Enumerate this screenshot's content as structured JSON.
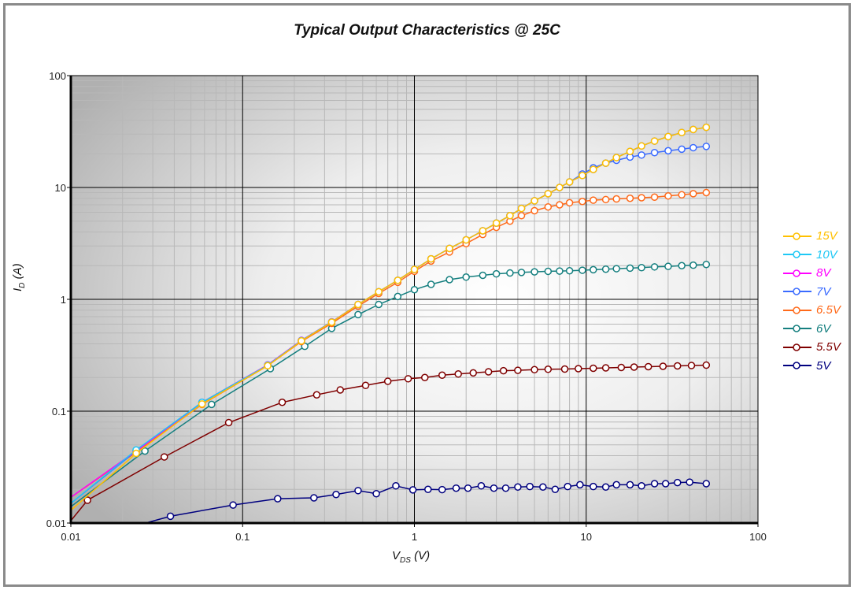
{
  "chart_data": {
    "type": "line",
    "title": "Typical Output Characteristics @ 25C",
    "xlabel": {
      "main": "V",
      "sub": "DS",
      "unit": " (V)"
    },
    "ylabel": {
      "main": "I",
      "sub": "D",
      "unit": " (A)"
    },
    "xscale": "log",
    "yscale": "log",
    "xlim": [
      0.01,
      100
    ],
    "ylim": [
      0.01,
      100
    ],
    "xticks": [
      {
        "v": 0.01,
        "label": "0.01"
      },
      {
        "v": 0.1,
        "label": "0.1"
      },
      {
        "v": 1,
        "label": "1"
      },
      {
        "v": 10,
        "label": "10"
      },
      {
        "v": 100,
        "label": "100"
      }
    ],
    "yticks": [
      {
        "v": 0.01,
        "label": "0.01"
      },
      {
        "v": 0.1,
        "label": "0.1"
      },
      {
        "v": 1,
        "label": "1"
      },
      {
        "v": 10,
        "label": "10"
      },
      {
        "v": 100,
        "label": "100"
      }
    ],
    "grid": true,
    "legend_position": "right",
    "series": [
      {
        "name": "15V",
        "color": "#FFC000",
        "x": [
          0.01,
          0.024,
          0.058,
          0.14,
          0.22,
          0.33,
          0.47,
          0.62,
          0.8,
          1.0,
          1.25,
          1.6,
          2.0,
          2.5,
          3.0,
          3.6,
          4.2,
          5.0,
          6.0,
          7.0,
          8.0,
          9.5,
          11,
          13,
          15,
          18,
          21,
          25,
          30,
          36,
          42,
          50
        ],
        "y": [
          0.013,
          0.042,
          0.116,
          0.255,
          0.425,
          0.625,
          0.9,
          1.17,
          1.48,
          1.85,
          2.3,
          2.85,
          3.4,
          4.1,
          4.8,
          5.6,
          6.5,
          7.6,
          8.8,
          10,
          11.2,
          12.8,
          14.5,
          16.5,
          18.5,
          21,
          23.5,
          26,
          28.5,
          31,
          33,
          34.5
        ]
      },
      {
        "name": "10V",
        "color": "#1EC8F5",
        "x": [
          0.01,
          0.024,
          0.058,
          0.14,
          0.22,
          0.33,
          0.47,
          0.62,
          0.8,
          1.0,
          1.25,
          1.6,
          2.0,
          2.5,
          3.0,
          3.6,
          4.2,
          5.0,
          6.0,
          7.0,
          8.0,
          9.5,
          11,
          13,
          15,
          18,
          21,
          25,
          30,
          36,
          42,
          50
        ],
        "y": [
          0.015,
          0.045,
          0.12,
          0.258,
          0.428,
          0.628,
          0.9,
          1.17,
          1.48,
          1.85,
          2.3,
          2.85,
          3.4,
          4.1,
          4.8,
          5.6,
          6.5,
          7.6,
          8.8,
          10,
          11.2,
          12.8,
          14.5,
          16.5,
          18.5,
          21,
          23.5,
          26,
          28.5,
          31,
          33,
          34.5
        ]
      },
      {
        "name": "8V",
        "color": "#FF00FF",
        "x": [
          0.01,
          0.024,
          0.058,
          0.14,
          0.22,
          0.33,
          0.47,
          0.62,
          0.8,
          1.0,
          1.25,
          1.6,
          2.0,
          2.5,
          3.0,
          3.6,
          4.2,
          5.0,
          6.0,
          7.0,
          8.0,
          9.5,
          11,
          13,
          15,
          18,
          21,
          25,
          30,
          36,
          42,
          50
        ],
        "y": [
          0.017,
          0.044,
          0.12,
          0.26,
          0.43,
          0.63,
          0.9,
          1.17,
          1.48,
          1.85,
          2.3,
          2.85,
          3.4,
          4.1,
          4.8,
          5.6,
          6.5,
          7.6,
          8.8,
          10,
          11.2,
          12.8,
          14.5,
          16.5,
          18.5,
          21,
          23.5,
          26,
          28.5,
          31,
          33,
          34.5
        ]
      },
      {
        "name": "7V",
        "color": "#3A6BFF",
        "x": [
          0.01,
          0.024,
          0.058,
          0.14,
          0.22,
          0.33,
          0.47,
          0.62,
          0.8,
          1.0,
          1.25,
          1.6,
          2.0,
          2.5,
          3.0,
          3.6,
          4.2,
          5.0,
          6.0,
          7.0,
          8.0,
          9.5,
          11,
          13,
          15,
          18,
          21,
          25,
          30,
          36,
          42,
          50
        ],
        "y": [
          0.015,
          0.044,
          0.119,
          0.258,
          0.428,
          0.628,
          0.9,
          1.17,
          1.48,
          1.85,
          2.3,
          2.85,
          3.4,
          4.1,
          4.8,
          5.6,
          6.5,
          7.6,
          8.8,
          10,
          11.2,
          13.2,
          15,
          16.5,
          17.5,
          18.7,
          19.5,
          20.5,
          21.3,
          22,
          22.7,
          23.3
        ]
      },
      {
        "name": "6.5V",
        "color": "#FF6A1A",
        "x": [
          0.01,
          0.024,
          0.058,
          0.14,
          0.22,
          0.33,
          0.47,
          0.62,
          0.8,
          1.0,
          1.25,
          1.6,
          2.0,
          2.5,
          3.0,
          3.6,
          4.2,
          5.0,
          6.0,
          7.0,
          8.0,
          9.5,
          11,
          13,
          15,
          18,
          21,
          25,
          30,
          36,
          42,
          50
        ],
        "y": [
          0.017,
          0.043,
          0.115,
          0.255,
          0.42,
          0.61,
          0.87,
          1.13,
          1.42,
          1.78,
          2.2,
          2.65,
          3.15,
          3.8,
          4.4,
          5.0,
          5.6,
          6.2,
          6.7,
          7.0,
          7.3,
          7.5,
          7.7,
          7.8,
          7.9,
          8.0,
          8.1,
          8.2,
          8.4,
          8.6,
          8.8,
          9.0
        ]
      },
      {
        "name": "6V",
        "color": "#157F7F",
        "x": [
          0.01,
          0.027,
          0.066,
          0.145,
          0.23,
          0.33,
          0.47,
          0.62,
          0.8,
          1.0,
          1.25,
          1.6,
          2.0,
          2.5,
          3.0,
          3.6,
          4.2,
          5.0,
          6.0,
          7.0,
          8.0,
          9.5,
          11,
          13,
          15,
          18,
          21,
          25,
          30,
          36,
          42,
          50
        ],
        "y": [
          0.014,
          0.044,
          0.115,
          0.24,
          0.38,
          0.55,
          0.73,
          0.9,
          1.06,
          1.22,
          1.36,
          1.5,
          1.58,
          1.64,
          1.69,
          1.72,
          1.74,
          1.76,
          1.78,
          1.79,
          1.8,
          1.82,
          1.84,
          1.86,
          1.88,
          1.9,
          1.92,
          1.95,
          1.97,
          2.0,
          2.02,
          2.05
        ]
      },
      {
        "name": "5.5V",
        "color": "#7F0000",
        "x": [
          0.01,
          0.0125,
          0.035,
          0.083,
          0.17,
          0.27,
          0.37,
          0.52,
          0.7,
          0.92,
          1.15,
          1.45,
          1.8,
          2.2,
          2.7,
          3.3,
          4,
          5,
          6,
          7.5,
          9,
          11,
          13,
          16,
          19,
          23,
          28,
          34,
          41,
          50
        ],
        "y": [
          0.0105,
          0.016,
          0.039,
          0.079,
          0.12,
          0.14,
          0.155,
          0.17,
          0.185,
          0.195,
          0.2,
          0.21,
          0.215,
          0.22,
          0.225,
          0.23,
          0.232,
          0.235,
          0.237,
          0.238,
          0.24,
          0.242,
          0.244,
          0.246,
          0.248,
          0.25,
          0.252,
          0.254,
          0.256,
          0.258
        ]
      },
      {
        "name": "5V",
        "color": "#00007F",
        "x": [
          0.026,
          0.038,
          0.088,
          0.16,
          0.26,
          0.35,
          0.47,
          0.6,
          0.78,
          0.98,
          1.2,
          1.45,
          1.75,
          2.05,
          2.45,
          2.9,
          3.4,
          4,
          4.7,
          5.6,
          6.6,
          7.8,
          9.2,
          11,
          13,
          15,
          18,
          21,
          25,
          29,
          34,
          40,
          50
        ],
        "y": [
          0.0098,
          0.0115,
          0.0145,
          0.0165,
          0.0168,
          0.018,
          0.0195,
          0.0183,
          0.0215,
          0.0198,
          0.02,
          0.0199,
          0.0205,
          0.0205,
          0.0215,
          0.0205,
          0.0205,
          0.021,
          0.0212,
          0.021,
          0.02,
          0.0212,
          0.022,
          0.0212,
          0.021,
          0.022,
          0.022,
          0.0215,
          0.0225,
          0.0225,
          0.023,
          0.0232,
          0.0225
        ]
      }
    ]
  }
}
